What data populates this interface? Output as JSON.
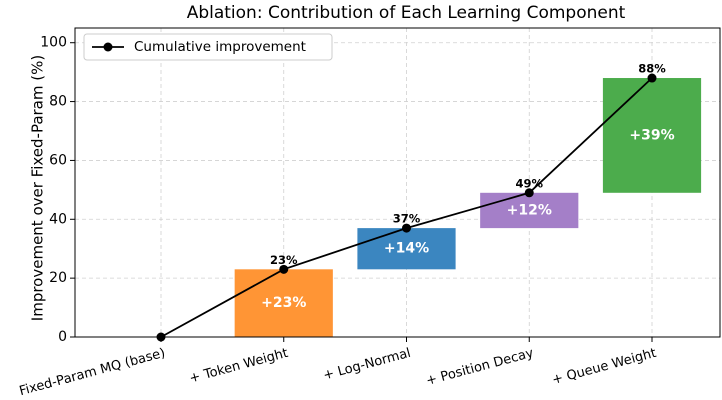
{
  "chart_data": {
    "type": "waterfall",
    "title": "Ablation: Contribution of Each Learning Component",
    "y_label": "Improvement over Fixed-Param (%)",
    "categories": [
      "Fixed-Param MQ (base)",
      "+ Token Weight",
      "+ Log-Normal",
      "+ Position Decay",
      "+ Queue Weight"
    ],
    "increments": {
      "values": [
        null,
        23,
        14,
        12,
        39
      ],
      "value_labels": [
        null,
        "+23%",
        "+14%",
        "+12%",
        "+39%"
      ],
      "colors": [
        null,
        "#ff9535",
        "#3b86c0",
        "#a47fc8",
        "#4cac4c"
      ]
    },
    "series": [
      {
        "name": "Cumulative improvement",
        "color": "#000000",
        "values": [
          0,
          23,
          37,
          49,
          88
        ],
        "value_labels": [
          null,
          "23%",
          "37%",
          "49%",
          "88%"
        ]
      }
    ],
    "ylim": [
      0,
      105
    ],
    "yticks": [
      0,
      20,
      40,
      60,
      80,
      100
    ],
    "grid": true,
    "legend": "upper left"
  }
}
